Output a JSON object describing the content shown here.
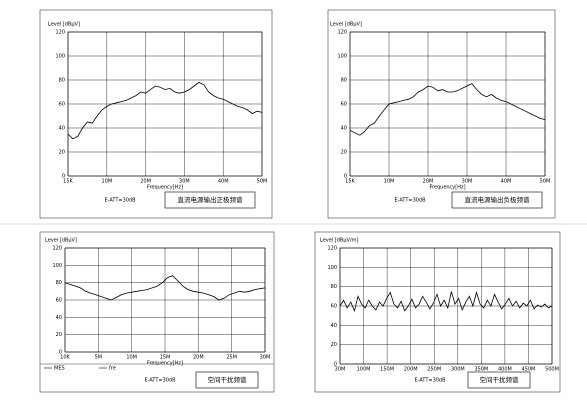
{
  "chart_data": [
    {
      "type": "line",
      "title": "直流电源输出正极频谱",
      "note": "E-ATT=30dB",
      "y_label": "Level [dBμV]",
      "x_label": "Frequency[Hz]",
      "ylim": [
        0,
        120
      ],
      "yticks": [
        0,
        20,
        40,
        60,
        80,
        100,
        120
      ],
      "grid": true,
      "x_labels": [
        "15K",
        "10M",
        "20M",
        "30M",
        "40M",
        "50M"
      ],
      "series": [
        {
          "color": "#000000",
          "values": [
            35,
            31,
            33,
            40,
            45,
            44,
            50,
            55,
            58,
            60,
            61,
            62,
            63,
            65,
            67,
            70,
            69,
            72,
            75,
            74,
            72,
            73,
            70,
            69,
            70,
            72,
            75,
            78,
            76,
            70,
            67,
            65,
            64,
            62,
            60,
            58,
            57,
            55,
            52,
            54,
            53
          ]
        }
      ]
    },
    {
      "type": "line",
      "title": "直流电源输出负极频谱",
      "note": "E-ATT=30dB",
      "y_label": "Level [dBμV]",
      "x_label": "Frequency[Hz]",
      "ylim": [
        0,
        120
      ],
      "yticks": [
        0,
        20,
        40,
        60,
        80,
        100,
        120
      ],
      "grid": true,
      "x_labels": [
        "15K",
        "10M",
        "20M",
        "30M",
        "40M",
        "50M"
      ],
      "series": [
        {
          "color": "#000000",
          "values": [
            38,
            36,
            34,
            37,
            42,
            44,
            50,
            55,
            60,
            61,
            62,
            63,
            64,
            66,
            70,
            72,
            75,
            74,
            71,
            72,
            70,
            70,
            71,
            73,
            75,
            77,
            72,
            68,
            66,
            68,
            65,
            63,
            62,
            60,
            58,
            56,
            54,
            52,
            50,
            48,
            47
          ]
        }
      ]
    },
    {
      "type": "line",
      "title": "空间干扰频谱",
      "note": "E-ATT=30dB",
      "y_label": "Level [dBμV]",
      "x_label": "Frequency[Hz]",
      "ylim": [
        0,
        120
      ],
      "yticks": [
        0,
        20,
        40,
        60,
        80,
        100,
        120
      ],
      "grid": true,
      "x_labels": [
        "10K",
        "5M",
        "10M",
        "15M",
        "20M",
        "25M",
        "30M"
      ],
      "legend": [
        "MES",
        "fre"
      ],
      "series": [
        {
          "color": "#000000",
          "values": [
            80,
            78,
            76,
            74,
            70,
            68,
            66,
            64,
            62,
            60,
            63,
            66,
            68,
            69,
            70,
            71,
            72,
            74,
            76,
            80,
            86,
            88,
            82,
            76,
            72,
            70,
            69,
            68,
            66,
            64,
            60,
            62,
            66,
            68,
            70,
            69,
            70,
            72,
            73,
            74
          ]
        }
      ]
    },
    {
      "type": "line",
      "title": "空间干扰频谱",
      "note": "E-ATT=30dB",
      "y_label": "Level [dBμV/m]",
      "ylim": [
        0,
        120
      ],
      "yticks": [
        0,
        20,
        40,
        60,
        80,
        100,
        120
      ],
      "grid": true,
      "x_labels": [
        "30M",
        "100M",
        "150M",
        "200M",
        "250M",
        "300M",
        "350M",
        "400M",
        "450M",
        "500M"
      ],
      "series": [
        {
          "color": "#000000",
          "values": [
            60,
            66,
            58,
            64,
            55,
            70,
            62,
            58,
            66,
            60,
            56,
            64,
            60,
            68,
            74,
            62,
            58,
            65,
            55,
            60,
            67,
            58,
            62,
            70,
            64,
            57,
            63,
            72,
            60,
            66,
            58,
            75,
            62,
            68,
            56,
            64,
            70,
            60,
            74,
            62,
            58,
            66,
            60,
            72,
            64,
            57,
            62,
            68,
            60,
            65,
            58,
            63,
            60,
            66,
            57,
            61,
            59,
            62,
            58,
            60
          ]
        }
      ]
    }
  ]
}
